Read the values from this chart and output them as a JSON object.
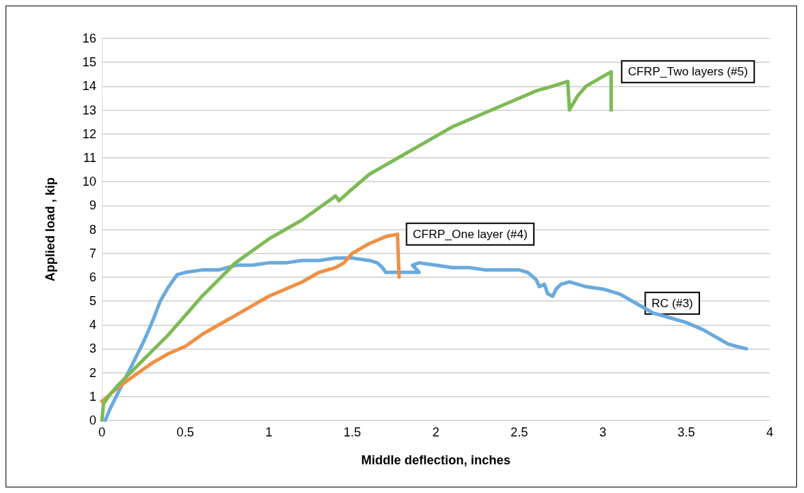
{
  "chart_data": {
    "type": "line",
    "xlabel": "Middle deflection, inches",
    "ylabel": "Applied load , kip",
    "xlim": [
      0,
      4
    ],
    "ylim": [
      0,
      16
    ],
    "xticks": [
      0,
      0.5,
      1,
      1.5,
      2,
      2.5,
      3,
      3.5,
      4
    ],
    "yticks": [
      0,
      1,
      2,
      3,
      4,
      5,
      6,
      7,
      8,
      9,
      10,
      11,
      12,
      13,
      14,
      15,
      16
    ],
    "grid": "y",
    "marker": "none",
    "line_style": "solid",
    "series": [
      {
        "name": "RC (#3)",
        "color": "#6aaadd",
        "x": [
          0.02,
          0.05,
          0.1,
          0.15,
          0.2,
          0.25,
          0.3,
          0.35,
          0.4,
          0.45,
          0.5,
          0.6,
          0.7,
          0.8,
          0.9,
          1.0,
          1.1,
          1.2,
          1.3,
          1.4,
          1.5,
          1.6,
          1.65,
          1.68,
          1.7,
          1.8,
          1.9,
          1.86,
          1.9,
          2.0,
          2.1,
          2.2,
          2.3,
          2.4,
          2.5,
          2.55,
          2.6,
          2.62,
          2.65,
          2.67,
          2.7,
          2.72,
          2.75,
          2.8,
          2.9,
          3.0,
          3.1,
          3.2,
          3.3,
          3.4,
          3.5,
          3.6,
          3.7,
          3.75,
          3.8,
          3.86
        ],
        "values": [
          0,
          0.5,
          1.2,
          1.9,
          2.6,
          3.3,
          4.1,
          5.0,
          5.6,
          6.1,
          6.2,
          6.3,
          6.3,
          6.5,
          6.5,
          6.6,
          6.6,
          6.7,
          6.7,
          6.8,
          6.8,
          6.7,
          6.6,
          6.4,
          6.2,
          6.2,
          6.2,
          6.5,
          6.6,
          6.5,
          6.4,
          6.4,
          6.3,
          6.3,
          6.3,
          6.2,
          5.9,
          5.6,
          5.7,
          5.3,
          5.2,
          5.5,
          5.7,
          5.8,
          5.6,
          5.5,
          5.3,
          4.9,
          4.5,
          4.3,
          4.1,
          3.8,
          3.4,
          3.2,
          3.1,
          3.0
        ]
      },
      {
        "name": "CFRP_One layer (#4)",
        "color": "#f08f42",
        "x": [
          0,
          0.02,
          0.05,
          0.1,
          0.2,
          0.3,
          0.4,
          0.5,
          0.6,
          0.7,
          0.8,
          0.9,
          1.0,
          1.1,
          1.2,
          1.3,
          1.4,
          1.45,
          1.5,
          1.6,
          1.7,
          1.77,
          1.78
        ],
        "values": [
          0.8,
          0.9,
          1.1,
          1.4,
          1.9,
          2.4,
          2.8,
          3.1,
          3.6,
          4.0,
          4.4,
          4.8,
          5.2,
          5.5,
          5.8,
          6.2,
          6.4,
          6.6,
          7.0,
          7.4,
          7.7,
          7.8,
          6.0
        ]
      },
      {
        "name": "CFRP_Two layers (#5)",
        "color": "#7dba55",
        "x": [
          0,
          0.01,
          0.05,
          0.1,
          0.2,
          0.3,
          0.4,
          0.5,
          0.6,
          0.7,
          0.8,
          0.9,
          1.0,
          1.1,
          1.2,
          1.3,
          1.4,
          1.42,
          1.5,
          1.6,
          1.7,
          1.8,
          1.9,
          2.0,
          2.1,
          2.2,
          2.3,
          2.4,
          2.5,
          2.6,
          2.7,
          2.79,
          2.8,
          2.85,
          2.9,
          3.0,
          3.05,
          3.05
        ],
        "values": [
          0,
          0.7,
          1.1,
          1.5,
          2.2,
          2.9,
          3.6,
          4.4,
          5.2,
          5.9,
          6.6,
          7.1,
          7.6,
          8.0,
          8.4,
          8.9,
          9.4,
          9.2,
          9.7,
          10.3,
          10.7,
          11.1,
          11.5,
          11.9,
          12.3,
          12.6,
          12.9,
          13.2,
          13.5,
          13.8,
          14.0,
          14.2,
          13.0,
          13.6,
          14.0,
          14.4,
          14.6,
          13.0
        ]
      }
    ]
  }
}
